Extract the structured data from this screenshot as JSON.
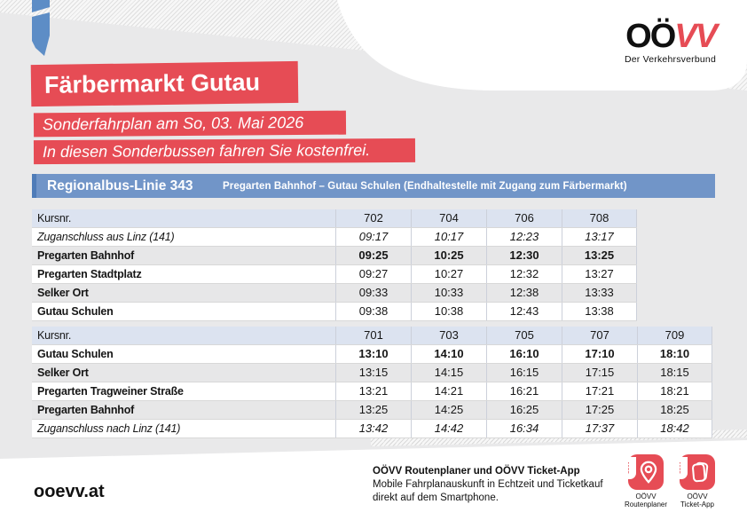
{
  "logo": {
    "black": "OÖ",
    "red": "VV",
    "tagline": "Der Verkehrsverbund"
  },
  "header": {
    "title": "Färbermarkt Gutau",
    "subtitle1": "Sonderfahrplan am So, 03. Mai 2026",
    "subtitle2": "In diesen Sonderbussen fahren Sie kostenfrei."
  },
  "line_bar": {
    "line": "Regionalbus-Linie 343",
    "route": "Pregarten Bahnhof – Gutau Schulen (Endhaltestelle mit Zugang zum Färbermarkt)"
  },
  "tables": [
    {
      "header": [
        "Kursnr.",
        "702",
        "704",
        "706",
        "708"
      ],
      "rows": [
        {
          "label": "Zuganschluss aus Linz (141)",
          "times": [
            "09:17",
            "10:17",
            "12:23",
            "13:17"
          ],
          "style": "italic"
        },
        {
          "label": "Pregarten Bahnhof",
          "times": [
            "09:25",
            "10:25",
            "12:30",
            "13:25"
          ],
          "style": "bold"
        },
        {
          "label": "Pregarten Stadtplatz",
          "times": [
            "09:27",
            "10:27",
            "12:32",
            "13:27"
          ],
          "style": ""
        },
        {
          "label": "Selker Ort",
          "times": [
            "09:33",
            "10:33",
            "12:38",
            "13:33"
          ],
          "style": ""
        },
        {
          "label": "Gutau Schulen",
          "times": [
            "09:38",
            "10:38",
            "12:43",
            "13:38"
          ],
          "style": ""
        }
      ]
    },
    {
      "header": [
        "Kursnr.",
        "701",
        "703",
        "705",
        "707",
        "709"
      ],
      "rows": [
        {
          "label": "Gutau Schulen",
          "times": [
            "13:10",
            "14:10",
            "16:10",
            "17:10",
            "18:10"
          ],
          "style": "bold"
        },
        {
          "label": "Selker Ort",
          "times": [
            "13:15",
            "14:15",
            "16:15",
            "17:15",
            "18:15"
          ],
          "style": ""
        },
        {
          "label": "Pregarten Tragweiner Straße",
          "times": [
            "13:21",
            "14:21",
            "16:21",
            "17:21",
            "18:21"
          ],
          "style": ""
        },
        {
          "label": "Pregarten Bahnhof",
          "times": [
            "13:25",
            "14:25",
            "16:25",
            "17:25",
            "18:25"
          ],
          "style": ""
        },
        {
          "label": "Zuganschluss nach Linz (141)",
          "times": [
            "13:42",
            "14:42",
            "16:34",
            "17:37",
            "18:42"
          ],
          "style": "italic"
        }
      ]
    }
  ],
  "footer": {
    "website": "ooevv.at",
    "promo_title": "OÖVV Routenplaner und OÖVV Ticket-App",
    "promo_line1": "Mobile Fahrplanauskunft in Echtzeit und Ticketkauf",
    "promo_line2": "direkt auf dem Smartphone.",
    "apps": [
      {
        "badge": "oövv",
        "caption1": "OÖVV",
        "caption2": "Routenplaner"
      },
      {
        "badge": "oövv",
        "caption1": "OÖVV",
        "caption2": "Ticket-App"
      }
    ]
  },
  "colors": {
    "red": "#e64c55",
    "blue": "#7195c8",
    "blue-dark": "#4f7cb8",
    "thead": "#dce3f0",
    "row-alt": "#e7e7e8",
    "ribbon": "#5d8dc6"
  }
}
